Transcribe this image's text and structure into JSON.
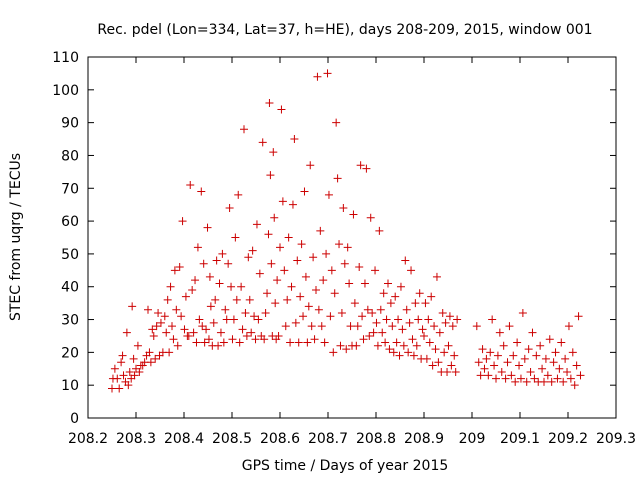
{
  "chart_data": {
    "type": "scatter",
    "title": "Rec. pdel (Lon=334, Lat=37, h=HE), days 208-209, 2015, window 001",
    "xlabel": "GPS time / Days of year 2015",
    "ylabel": "STEC from uqrg / TECUs",
    "xlim": [
      208.2,
      209.3
    ],
    "ylim": [
      0,
      110
    ],
    "x_ticks": [
      208.2,
      208.3,
      208.4,
      208.5,
      208.6,
      208.7,
      208.8,
      208.9,
      209,
      209.1,
      209.2,
      209.3
    ],
    "x_tick_labels": [
      "208.2",
      "208.3",
      "208.4",
      "208.5",
      "208.6",
      "208.7",
      "208.8",
      "208.9",
      "209",
      "209.1",
      "209.2",
      "209.3"
    ],
    "y_ticks": [
      0,
      10,
      20,
      30,
      40,
      50,
      60,
      70,
      80,
      90,
      100,
      110
    ],
    "y_tick_labels": [
      "0",
      "10",
      "20",
      "30",
      "40",
      "50",
      "60",
      "70",
      "80",
      "90",
      "100",
      "110"
    ],
    "marker": "+",
    "color": "#cc0000",
    "series": [
      {
        "name": "STEC",
        "points": [
          [
            208.25,
            9
          ],
          [
            208.252,
            12
          ],
          [
            208.256,
            15
          ],
          [
            208.261,
            12
          ],
          [
            208.265,
            9
          ],
          [
            208.269,
            17
          ],
          [
            208.272,
            19
          ],
          [
            208.274,
            13
          ],
          [
            208.278,
            11
          ],
          [
            208.281,
            26
          ],
          [
            208.284,
            10
          ],
          [
            208.287,
            14
          ],
          [
            208.29,
            12
          ],
          [
            208.292,
            34
          ],
          [
            208.295,
            18
          ],
          [
            208.297,
            13
          ],
          [
            208.3,
            15
          ],
          [
            208.304,
            22
          ],
          [
            208.307,
            14
          ],
          [
            208.31,
            16
          ],
          [
            208.314,
            16
          ],
          [
            208.318,
            17
          ],
          [
            208.322,
            19
          ],
          [
            208.325,
            33
          ],
          [
            208.328,
            20
          ],
          [
            208.331,
            17
          ],
          [
            208.334,
            27
          ],
          [
            208.337,
            25
          ],
          [
            208.34,
            18
          ],
          [
            208.343,
            28
          ],
          [
            208.346,
            32
          ],
          [
            208.349,
            19
          ],
          [
            208.352,
            29
          ],
          [
            208.356,
            20
          ],
          [
            208.36,
            31
          ],
          [
            208.363,
            26
          ],
          [
            208.366,
            36
          ],
          [
            208.369,
            20
          ],
          [
            208.372,
            40
          ],
          [
            208.375,
            28
          ],
          [
            208.378,
            24
          ],
          [
            208.381,
            45
          ],
          [
            208.384,
            33
          ],
          [
            208.387,
            22
          ],
          [
            208.391,
            46
          ],
          [
            208.394,
            31
          ],
          [
            208.397,
            60
          ],
          [
            208.401,
            27
          ],
          [
            208.404,
            37
          ],
          [
            208.407,
            25
          ],
          [
            208.41,
            25
          ],
          [
            208.413,
            71
          ],
          [
            208.417,
            39
          ],
          [
            208.42,
            26
          ],
          [
            208.423,
            42
          ],
          [
            208.426,
            23
          ],
          [
            208.429,
            52
          ],
          [
            208.432,
            30
          ],
          [
            208.436,
            69
          ],
          [
            208.438,
            28
          ],
          [
            208.441,
            47
          ],
          [
            208.443,
            23
          ],
          [
            208.446,
            27
          ],
          [
            208.449,
            58
          ],
          [
            208.452,
            24
          ],
          [
            208.454,
            43
          ],
          [
            208.456,
            34
          ],
          [
            208.459,
            22
          ],
          [
            208.462,
            29
          ],
          [
            208.465,
            36
          ],
          [
            208.468,
            48
          ],
          [
            208.471,
            22
          ],
          [
            208.474,
            41
          ],
          [
            208.477,
            26
          ],
          [
            208.48,
            50
          ],
          [
            208.483,
            23
          ],
          [
            208.486,
            33
          ],
          [
            208.489,
            30
          ],
          [
            208.492,
            47
          ],
          [
            208.495,
            64
          ],
          [
            208.498,
            40
          ],
          [
            208.501,
            24
          ],
          [
            208.504,
            30
          ],
          [
            208.507,
            55
          ],
          [
            208.51,
            36
          ],
          [
            208.513,
            68
          ],
          [
            208.516,
            23
          ],
          [
            208.519,
            40
          ],
          [
            208.522,
            27
          ],
          [
            208.525,
            88
          ],
          [
            208.528,
            32
          ],
          [
            208.531,
            25
          ],
          [
            208.534,
            49
          ],
          [
            208.537,
            36
          ],
          [
            208.54,
            26
          ],
          [
            208.543,
            51
          ],
          [
            208.546,
            31
          ],
          [
            208.549,
            24
          ],
          [
            208.552,
            59
          ],
          [
            208.555,
            30
          ],
          [
            208.558,
            44
          ],
          [
            208.561,
            25
          ],
          [
            208.564,
            84
          ],
          [
            208.567,
            24
          ],
          [
            208.57,
            32
          ],
          [
            208.573,
            38
          ],
          [
            208.576,
            56
          ],
          [
            208.578,
            96
          ],
          [
            208.58,
            74
          ],
          [
            208.582,
            47
          ],
          [
            208.584,
            25
          ],
          [
            208.586,
            81
          ],
          [
            208.588,
            61
          ],
          [
            208.59,
            35
          ],
          [
            208.592,
            24
          ],
          [
            208.594,
            42
          ],
          [
            208.597,
            25
          ],
          [
            208.6,
            52
          ],
          [
            208.603,
            94
          ],
          [
            208.606,
            66
          ],
          [
            208.609,
            45
          ],
          [
            208.612,
            28
          ],
          [
            208.615,
            36
          ],
          [
            208.618,
            55
          ],
          [
            208.621,
            23
          ],
          [
            208.624,
            40
          ],
          [
            208.627,
            65
          ],
          [
            208.63,
            85
          ],
          [
            208.633,
            29
          ],
          [
            208.636,
            48
          ],
          [
            208.639,
            23
          ],
          [
            208.642,
            37
          ],
          [
            208.645,
            53
          ],
          [
            208.648,
            31
          ],
          [
            208.651,
            69
          ],
          [
            208.654,
            43
          ],
          [
            208.657,
            23
          ],
          [
            208.66,
            34
          ],
          [
            208.663,
            77
          ],
          [
            208.666,
            28
          ],
          [
            208.669,
            49
          ],
          [
            208.672,
            24
          ],
          [
            208.675,
            39
          ],
          [
            208.678,
            104
          ],
          [
            208.681,
            33
          ],
          [
            208.684,
            57
          ],
          [
            208.687,
            28
          ],
          [
            208.69,
            42
          ],
          [
            208.693,
            23
          ],
          [
            208.696,
            50
          ],
          [
            208.699,
            105
          ],
          [
            208.702,
            68
          ],
          [
            208.705,
            31
          ],
          [
            208.708,
            45
          ],
          [
            208.711,
            20
          ],
          [
            208.714,
            38
          ],
          [
            208.717,
            90
          ],
          [
            208.72,
            73
          ],
          [
            208.723,
            53
          ],
          [
            208.726,
            22
          ],
          [
            208.729,
            32
          ],
          [
            208.732,
            64
          ],
          [
            208.735,
            47
          ],
          [
            208.738,
            21
          ],
          [
            208.741,
            52
          ],
          [
            208.744,
            41
          ],
          [
            208.747,
            28
          ],
          [
            208.75,
            22
          ],
          [
            208.753,
            62
          ],
          [
            208.756,
            35
          ],
          [
            208.759,
            22
          ],
          [
            208.762,
            28
          ],
          [
            208.765,
            46
          ],
          [
            208.768,
            77
          ],
          [
            208.771,
            31
          ],
          [
            208.774,
            24
          ],
          [
            208.777,
            41
          ],
          [
            208.78,
            76
          ],
          [
            208.783,
            33
          ],
          [
            208.786,
            25
          ],
          [
            208.789,
            61
          ],
          [
            208.792,
            32
          ],
          [
            208.795,
            26
          ],
          [
            208.798,
            45
          ],
          [
            208.801,
            29
          ],
          [
            208.804,
            22
          ],
          [
            208.807,
            57
          ],
          [
            208.81,
            33
          ],
          [
            208.813,
            26
          ],
          [
            208.816,
            38
          ],
          [
            208.819,
            23
          ],
          [
            208.822,
            30
          ],
          [
            208.825,
            41
          ],
          [
            208.828,
            21
          ],
          [
            208.831,
            35
          ],
          [
            208.834,
            28
          ],
          [
            208.837,
            20
          ],
          [
            208.84,
            37
          ],
          [
            208.843,
            23
          ],
          [
            208.846,
            30
          ],
          [
            208.849,
            19
          ],
          [
            208.852,
            40
          ],
          [
            208.855,
            27
          ],
          [
            208.858,
            22
          ],
          [
            208.861,
            48
          ],
          [
            208.864,
            33
          ],
          [
            208.867,
            20
          ],
          [
            208.87,
            29
          ],
          [
            208.873,
            45
          ],
          [
            208.876,
            24
          ],
          [
            208.879,
            19
          ],
          [
            208.882,
            35
          ],
          [
            208.885,
            22
          ],
          [
            208.888,
            30
          ],
          [
            208.891,
            38
          ],
          [
            208.894,
            18
          ],
          [
            208.897,
            27
          ],
          [
            208.9,
            25
          ],
          [
            208.903,
            35
          ],
          [
            208.906,
            18
          ],
          [
            208.909,
            30
          ],
          [
            208.912,
            23
          ],
          [
            208.915,
            37
          ],
          [
            208.918,
            16
          ],
          [
            208.921,
            28
          ],
          [
            208.924,
            21
          ],
          [
            208.927,
            43
          ],
          [
            208.93,
            17
          ],
          [
            208.933,
            26
          ],
          [
            208.936,
            14
          ],
          [
            208.939,
            32
          ],
          [
            208.942,
            20
          ],
          [
            208.945,
            29
          ],
          [
            208.948,
            14
          ],
          [
            208.951,
            22
          ],
          [
            208.954,
            31
          ],
          [
            208.957,
            16
          ],
          [
            208.96,
            28
          ],
          [
            208.963,
            19
          ],
          [
            208.966,
            14
          ],
          [
            208.969,
            30
          ],
          [
            209.01,
            28
          ],
          [
            209.014,
            17
          ],
          [
            209.018,
            13
          ],
          [
            209.022,
            21
          ],
          [
            209.026,
            15
          ],
          [
            209.03,
            18
          ],
          [
            209.034,
            13
          ],
          [
            209.038,
            20
          ],
          [
            209.042,
            30
          ],
          [
            209.046,
            16
          ],
          [
            209.05,
            12
          ],
          [
            209.054,
            19
          ],
          [
            209.058,
            26
          ],
          [
            209.062,
            14
          ],
          [
            209.066,
            22
          ],
          [
            209.07,
            12
          ],
          [
            209.074,
            17
          ],
          [
            209.078,
            28
          ],
          [
            209.082,
            13
          ],
          [
            209.086,
            19
          ],
          [
            209.09,
            11
          ],
          [
            209.094,
            23
          ],
          [
            209.098,
            16
          ],
          [
            209.102,
            12
          ],
          [
            209.106,
            32
          ],
          [
            209.11,
            18
          ],
          [
            209.114,
            11
          ],
          [
            209.118,
            21
          ],
          [
            209.122,
            14
          ],
          [
            209.126,
            26
          ],
          [
            209.13,
            12
          ],
          [
            209.134,
            19
          ],
          [
            209.138,
            11
          ],
          [
            209.142,
            22
          ],
          [
            209.146,
            15
          ],
          [
            209.15,
            11
          ],
          [
            209.154,
            18
          ],
          [
            209.158,
            13
          ],
          [
            209.162,
            24
          ],
          [
            209.166,
            11
          ],
          [
            209.17,
            17
          ],
          [
            209.174,
            20
          ],
          [
            209.178,
            12
          ],
          [
            209.182,
            15
          ],
          [
            209.186,
            23
          ],
          [
            209.19,
            11
          ],
          [
            209.194,
            18
          ],
          [
            209.198,
            14
          ],
          [
            209.202,
            28
          ],
          [
            209.206,
            12
          ],
          [
            209.21,
            20
          ],
          [
            209.214,
            10
          ],
          [
            209.218,
            16
          ],
          [
            209.222,
            31
          ],
          [
            209.226,
            13
          ]
        ]
      }
    ]
  }
}
